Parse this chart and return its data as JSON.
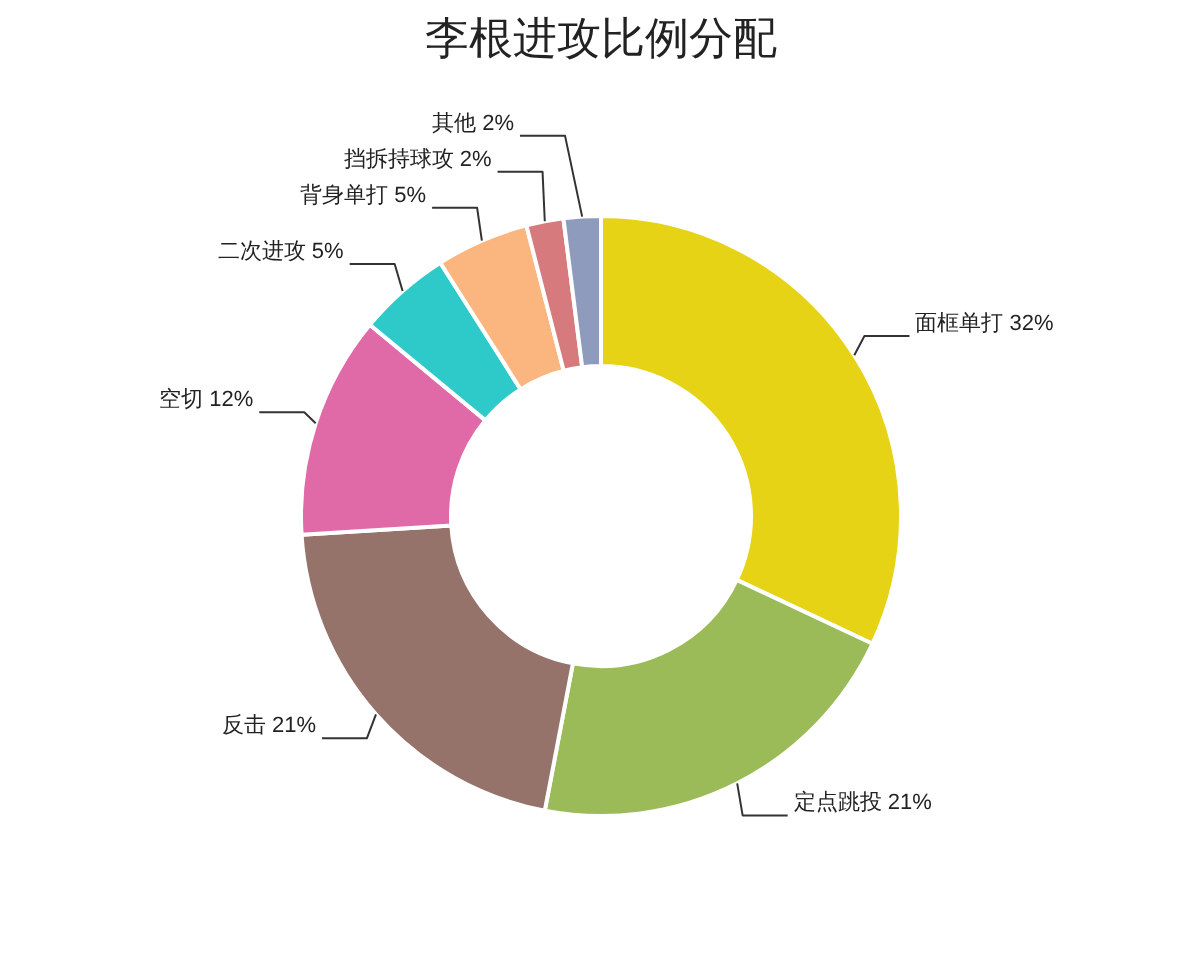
{
  "chart_data": {
    "type": "donut",
    "title": "李根进攻比例分配",
    "categories": [
      "面框单打",
      "定点跳投",
      "反击",
      "空切",
      "二次进攻",
      "背身单打",
      "挡拆持球攻",
      "其他"
    ],
    "values": [
      32,
      21,
      21,
      12,
      5,
      5,
      2,
      2
    ],
    "value_labels": [
      "32%",
      "21%",
      "21%",
      "12%",
      "5%",
      "5%",
      "2%",
      "2%"
    ],
    "colors": [
      "#e6d316",
      "#9bbb59",
      "#95736b",
      "#e06aa8",
      "#2ec9c9",
      "#fbb57f",
      "#d77a7e",
      "#8e9bbd"
    ],
    "legend": false
  }
}
